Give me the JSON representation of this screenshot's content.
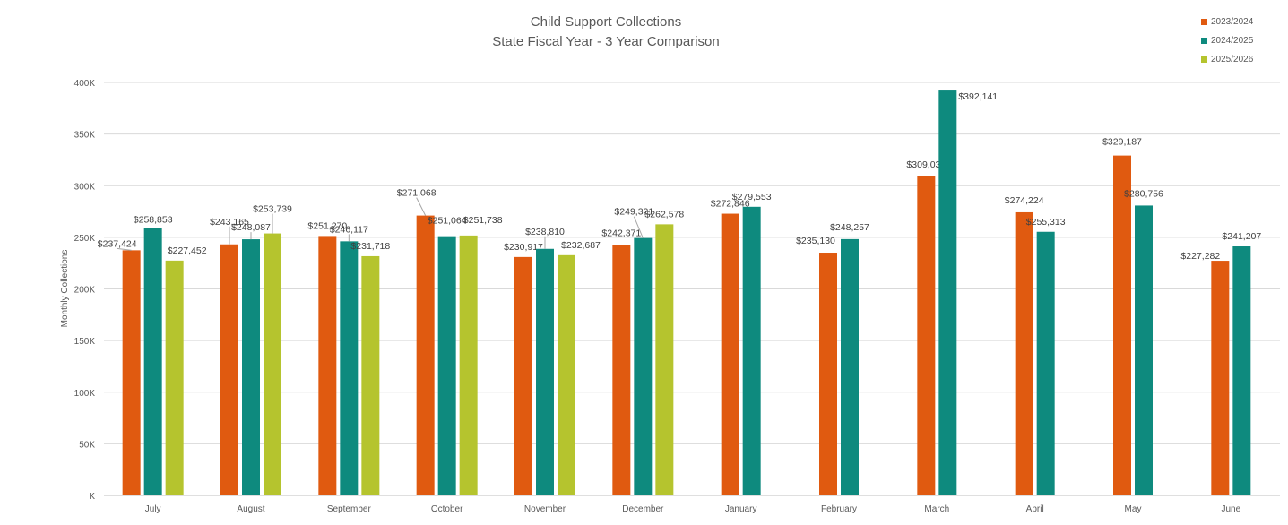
{
  "chart_data": {
    "type": "bar",
    "title": "Child Support Collections",
    "subtitle": "State Fiscal Year - 3 Year Comparison",
    "ylabel": "Monthly Collections",
    "xlabel": "",
    "ylim": [
      0,
      400000
    ],
    "yticks": [
      "K",
      "50K",
      "100K",
      "150K",
      "200K",
      "250K",
      "300K",
      "350K",
      "400K"
    ],
    "grid": true,
    "legend_position": "top-right",
    "categories": [
      "July",
      "August",
      "September",
      "October",
      "November",
      "December",
      "January",
      "February",
      "March",
      "April",
      "May",
      "June"
    ],
    "series": [
      {
        "name": "2023/2024",
        "color": "#E05A10",
        "values": [
          237424,
          243165,
          251270,
          271068,
          230917,
          242371,
          272846,
          235130,
          309035,
          274224,
          329187,
          227282
        ],
        "labels": [
          "$237,424",
          "$243,165",
          "$251,270",
          "$271,068",
          "$230,917",
          "$242,371",
          "$272,846",
          "$235,130",
          "$309,035",
          "$274,224",
          "$329,187",
          "$227,282"
        ]
      },
      {
        "name": "2024/2025",
        "color": "#0E8A7E",
        "values": [
          258853,
          248087,
          246117,
          251064,
          238810,
          249321,
          279553,
          248257,
          392141,
          255313,
          280756,
          241207
        ],
        "labels": [
          "$258,853",
          "$248,087",
          "$246,117",
          "$251,064",
          "$238,810",
          "$249,321",
          "$279,553",
          "$248,257",
          "$392,141",
          "$255,313",
          "$280,756",
          "$241,207"
        ]
      },
      {
        "name": "2025/2026",
        "color": "#B5C42E",
        "values": [
          227452,
          253739,
          231718,
          251738,
          232687,
          262578,
          null,
          null,
          null,
          null,
          null,
          null
        ],
        "labels": [
          "$227,452",
          "$253,739",
          "$231,718",
          "$251,738",
          "$232,687",
          "$262,578",
          "",
          "",
          "",
          "",
          "",
          ""
        ]
      }
    ]
  }
}
